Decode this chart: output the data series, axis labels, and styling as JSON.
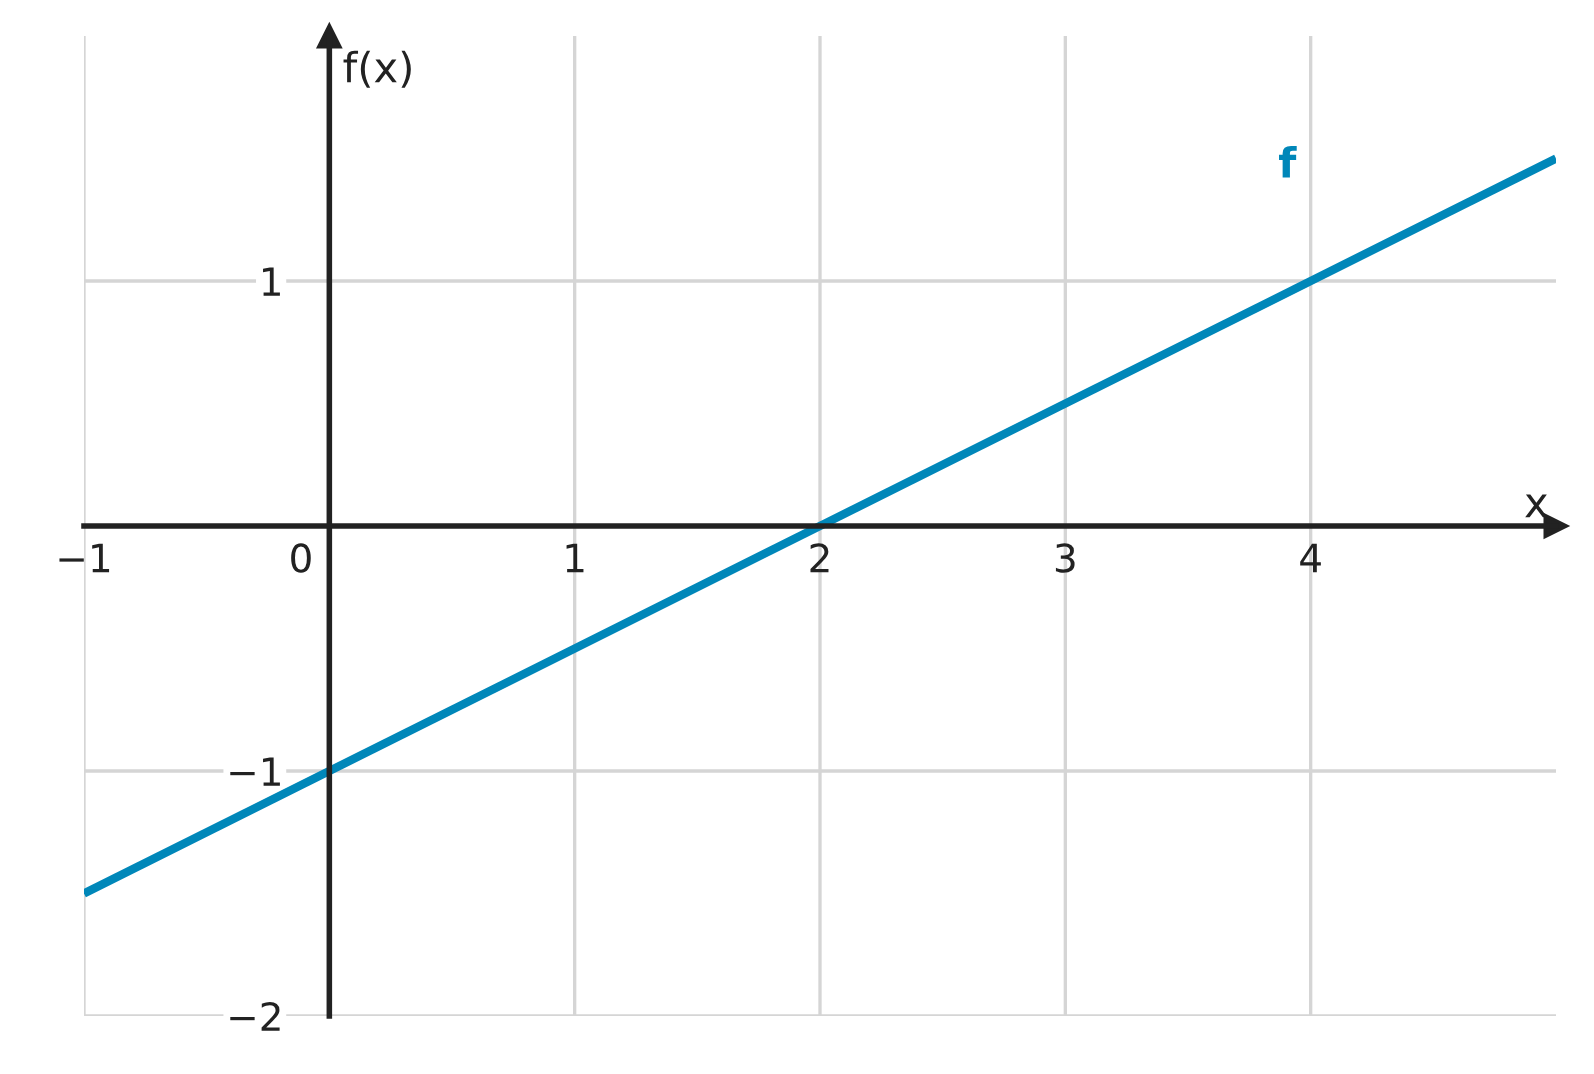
{
  "chart_data": {
    "type": "line",
    "xlabel": "x",
    "ylabel": "f(x)",
    "series": [
      {
        "name": "f",
        "color": "#0087b9",
        "x": [
          -1,
          5
        ],
        "values": [
          -1.5,
          1.5
        ]
      }
    ],
    "xlim": [
      -1,
      5
    ],
    "ylim": [
      -2,
      2
    ],
    "xticks": [
      {
        "value": -1,
        "label": "−1"
      },
      0,
      1,
      2,
      3,
      4
    ],
    "yticks": [
      {
        "value": -2,
        "label": "−2"
      },
      {
        "value": -1,
        "label": "−1"
      },
      1
    ],
    "grid": true,
    "legend": false
  }
}
